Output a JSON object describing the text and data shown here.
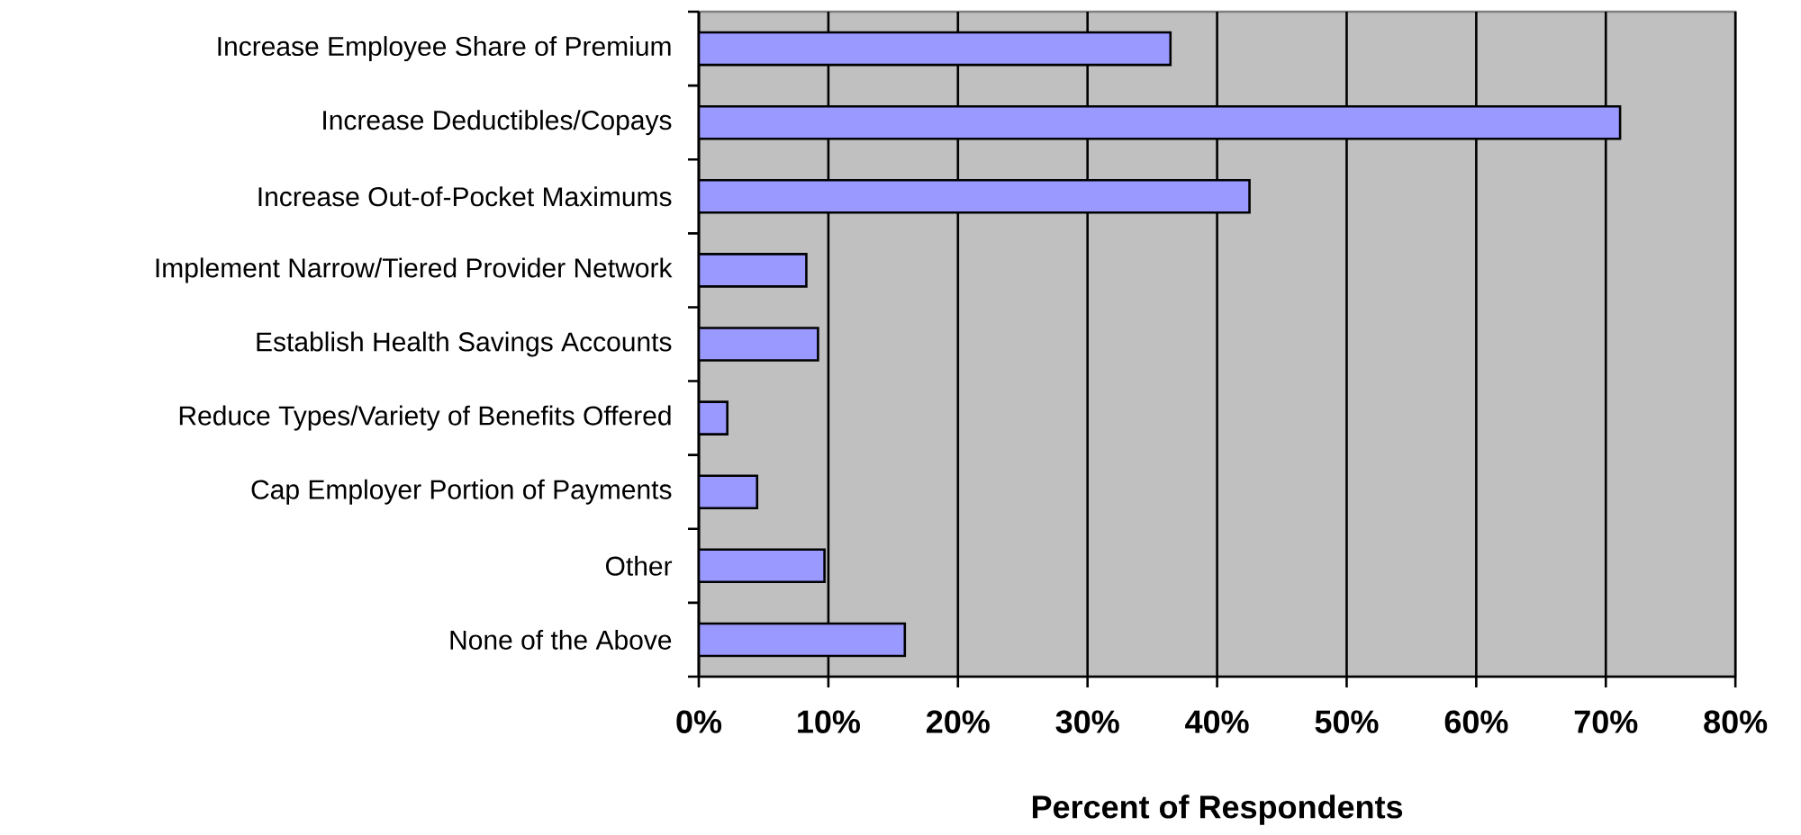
{
  "chart_data": {
    "type": "bar",
    "orientation": "horizontal",
    "xlabel": "Percent of Respondents",
    "categories": [
      "Increase Employee Share of Premium",
      "Increase Deductibles/Copays",
      "Increase Out-of-Pocket Maximums",
      "Implement Narrow/Tiered Provider Network",
      "Establish Health Savings Accounts",
      "Reduce Types/Variety of Benefits Offered",
      "Cap Employer Portion of Payments",
      "Other",
      "None of the Above"
    ],
    "values": [
      36.4,
      71.1,
      42.5,
      8.3,
      9.2,
      2.2,
      4.5,
      9.7,
      15.9
    ],
    "color": "#9999ff",
    "xlim": [
      0,
      80
    ],
    "xticks": [
      {
        "value": 0,
        "label": "0%"
      },
      {
        "value": 10,
        "label": "10%"
      },
      {
        "value": 20,
        "label": "20%"
      },
      {
        "value": 30,
        "label": "30%"
      },
      {
        "value": 40,
        "label": "40%"
      },
      {
        "value": 50,
        "label": "50%"
      },
      {
        "value": 60,
        "label": "60%"
      },
      {
        "value": 70,
        "label": "70%"
      },
      {
        "value": 80,
        "label": "80%"
      }
    ],
    "grid": "x"
  }
}
